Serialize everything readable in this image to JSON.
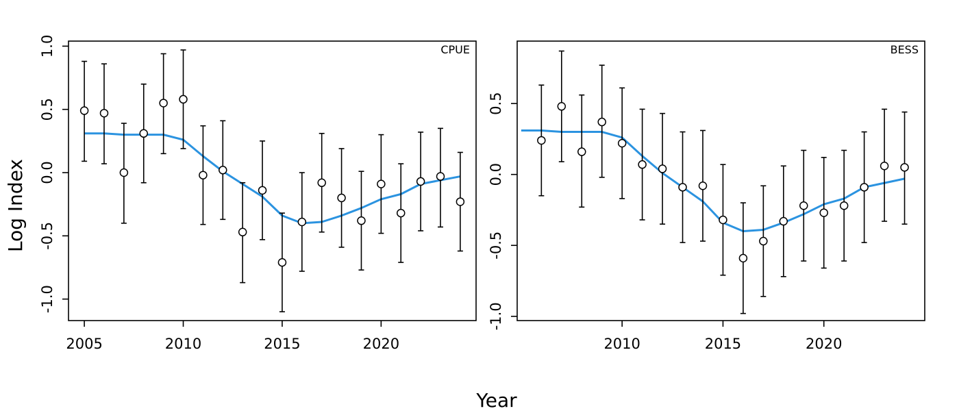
{
  "figure": {
    "xlabel": "Year",
    "ylabel": "Log Index",
    "fit_color": "#2b93e0",
    "point_fill": "#ffffff",
    "point_stroke": "#000000"
  },
  "chart_data": [
    {
      "type": "scatter",
      "panel_label": "CPUE",
      "xlim": [
        2004.2,
        2024.8
      ],
      "ylim": [
        -1.17,
        1.04
      ],
      "xticks": [
        2005,
        2010,
        2015,
        2020
      ],
      "yticks": [
        -1.0,
        -0.5,
        0.0,
        0.5,
        1.0
      ],
      "ytick_labels": [
        "-1.0",
        "-0.5",
        "0.0",
        "0.5",
        "1.0"
      ],
      "series": [
        {
          "kind": "points_with_error_bars",
          "x": [
            2005,
            2006,
            2007,
            2008,
            2009,
            2010,
            2011,
            2012,
            2013,
            2014,
            2015,
            2016,
            2017,
            2018,
            2019,
            2020,
            2021,
            2022,
            2023,
            2024
          ],
          "y": [
            0.49,
            0.47,
            0.0,
            0.31,
            0.55,
            0.58,
            -0.02,
            0.02,
            -0.47,
            -0.14,
            -0.71,
            -0.39,
            -0.08,
            -0.2,
            -0.38,
            -0.09,
            -0.32,
            -0.07,
            -0.03,
            -0.23
          ],
          "lower": [
            0.09,
            0.07,
            -0.4,
            -0.08,
            0.15,
            0.19,
            -0.41,
            -0.37,
            -0.87,
            -0.53,
            -1.1,
            -0.78,
            -0.47,
            -0.59,
            -0.77,
            -0.48,
            -0.71,
            -0.46,
            -0.43,
            -0.62
          ],
          "upper": [
            0.88,
            0.86,
            0.39,
            0.7,
            0.94,
            0.97,
            0.37,
            0.41,
            -0.08,
            0.25,
            -0.32,
            0.0,
            0.31,
            0.19,
            0.01,
            0.3,
            0.07,
            0.32,
            0.35,
            0.16
          ]
        },
        {
          "kind": "line",
          "x": [
            2005,
            2006,
            2007,
            2008,
            2009,
            2010,
            2011,
            2012,
            2013,
            2014,
            2015,
            2016,
            2017,
            2018,
            2019,
            2020,
            2021,
            2022,
            2023,
            2024
          ],
          "y": [
            0.31,
            0.31,
            0.3,
            0.3,
            0.3,
            0.26,
            0.13,
            0.01,
            -0.09,
            -0.19,
            -0.34,
            -0.4,
            -0.39,
            -0.34,
            -0.28,
            -0.21,
            -0.17,
            -0.09,
            -0.06,
            -0.03
          ]
        }
      ]
    },
    {
      "type": "scatter",
      "panel_label": "BESS",
      "xlim": [
        2004.8,
        2025.0
      ],
      "ylim": [
        -1.03,
        0.94
      ],
      "xticks": [
        2010,
        2015,
        2020
      ],
      "yticks": [
        -1.0,
        -0.5,
        0.0,
        0.5
      ],
      "ytick_labels": [
        "-1.0",
        "-0.5",
        "0.0",
        "0.5"
      ],
      "series": [
        {
          "kind": "points_with_error_bars",
          "x": [
            2006,
            2007,
            2008,
            2009,
            2010,
            2011,
            2012,
            2013,
            2014,
            2015,
            2016,
            2017,
            2018,
            2019,
            2020,
            2021,
            2022,
            2023,
            2024
          ],
          "y": [
            0.24,
            0.48,
            0.16,
            0.37,
            0.22,
            0.07,
            0.04,
            -0.09,
            -0.08,
            -0.32,
            -0.59,
            -0.47,
            -0.33,
            -0.22,
            -0.27,
            -0.22,
            -0.09,
            0.06,
            0.05
          ],
          "lower": [
            -0.15,
            0.09,
            -0.23,
            -0.02,
            -0.17,
            -0.32,
            -0.35,
            -0.48,
            -0.47,
            -0.71,
            -0.98,
            -0.86,
            -0.72,
            -0.61,
            -0.66,
            -0.61,
            -0.48,
            -0.33,
            -0.35
          ],
          "upper": [
            0.63,
            0.87,
            0.56,
            0.77,
            0.61,
            0.46,
            0.43,
            0.3,
            0.31,
            0.07,
            -0.2,
            -0.08,
            0.06,
            0.17,
            0.12,
            0.17,
            0.3,
            0.46,
            0.44
          ]
        },
        {
          "kind": "line",
          "x": [
            2005,
            2006,
            2007,
            2008,
            2009,
            2010,
            2011,
            2012,
            2013,
            2014,
            2015,
            2016,
            2017,
            2018,
            2019,
            2020,
            2021,
            2022,
            2023,
            2024
          ],
          "y": [
            0.31,
            0.31,
            0.3,
            0.3,
            0.3,
            0.26,
            0.13,
            0.01,
            -0.09,
            -0.19,
            -0.34,
            -0.4,
            -0.39,
            -0.34,
            -0.28,
            -0.21,
            -0.17,
            -0.09,
            -0.06,
            -0.03
          ]
        }
      ]
    }
  ]
}
